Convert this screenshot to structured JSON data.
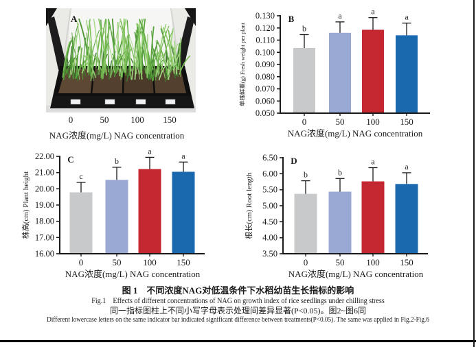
{
  "colors": {
    "bar_fill": [
      "#c8c9cb",
      "#9aa9d4",
      "#c4272f",
      "#1a68ad"
    ],
    "axis": "#1a1a1a",
    "text": "#1a1a1a",
    "soil": "#54402e",
    "tray": "#141414"
  },
  "panel_a": {
    "letter": "A",
    "tick_labels": [
      "0",
      "50",
      "100",
      "150"
    ],
    "xlabel": "NAG浓度(mg/L) NAG concentration"
  },
  "chart_data": [
    {
      "panel": "B",
      "type": "bar",
      "categories": [
        "0",
        "50",
        "100",
        "150"
      ],
      "values": [
        0.1035,
        0.116,
        0.1185,
        0.114
      ],
      "errors_up": [
        0.011,
        0.009,
        0.01,
        0.01
      ],
      "sig_letters": [
        "b",
        "a",
        "a",
        "a"
      ],
      "ylabel": "单株鲜重(g) Fresh weight per plant",
      "xlabel": "NAG浓度(mg/L) NAG concentration",
      "ylim": [
        0.05,
        0.13
      ],
      "ytick_labels": [
        "0.050",
        "0.060",
        "0.070",
        "0.080",
        "0.090",
        "0.100",
        "0.110",
        "0.120",
        "0.130"
      ],
      "grid": false,
      "legend": "none"
    },
    {
      "panel": "C",
      "type": "bar",
      "categories": [
        "0",
        "50",
        "100",
        "150"
      ],
      "values": [
        19.78,
        20.55,
        21.22,
        21.05
      ],
      "errors_up": [
        0.62,
        0.78,
        0.72,
        0.6
      ],
      "sig_letters": [
        "c",
        "b",
        "a",
        "a"
      ],
      "ylabel": "株高(cm) Plant height",
      "xlabel": "NAG浓度(mg/L) NAG concentration",
      "ylim": [
        16.0,
        22.0
      ],
      "ytick_labels": [
        "16.00",
        "17.00",
        "18.00",
        "19.00",
        "20.00",
        "21.00",
        "22.00"
      ],
      "grid": false,
      "legend": "none"
    },
    {
      "panel": "D",
      "type": "bar",
      "categories": [
        "0",
        "50",
        "100",
        "150"
      ],
      "values": [
        5.37,
        5.44,
        5.76,
        5.68
      ],
      "errors_up": [
        0.41,
        0.41,
        0.43,
        0.35
      ],
      "sig_letters": [
        "b",
        "b",
        "a",
        "a"
      ],
      "ylabel": "根长(cm) Root length",
      "xlabel": "NAG浓度(mg/L) NAG concentration",
      "ylim": [
        3.5,
        6.5
      ],
      "ytick_labels": [
        "3.50",
        "4.00",
        "4.50",
        "5.00",
        "5.50",
        "6.00",
        "6.50"
      ],
      "grid": false,
      "legend": "none"
    }
  ],
  "caption": {
    "title_zh": "图 1　不同浓度NAG对低温条件下水稻幼苗生长指标的影响",
    "title_en": "Fig.1　Effects of different concentrations of NAG on growth index of rice seedlings under chilling stress",
    "note_zh": "同一指标图柱上不同小写字母表示处理间差异显著(P<0.05)。图2~图6同",
    "note_en": "Different lowercase letters on the same indicator bar indicated significant difference between treatments(P<0.05). The same was applied in Fig.2-Fig.6"
  }
}
